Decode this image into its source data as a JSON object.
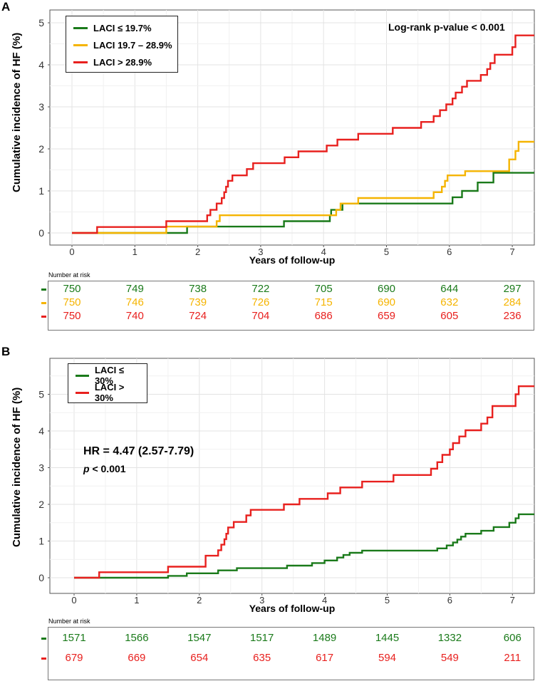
{
  "chart_data": [
    {
      "type": "line",
      "step": true,
      "panel": "A",
      "title": "",
      "xlabel": "Years of follow-up",
      "ylabel": "Cumulative incidence of HF (%)",
      "xlim": [
        -0.35,
        7.35
      ],
      "ylim": [
        -0.2,
        5.2
      ],
      "xticks": [
        0,
        1,
        2,
        3,
        4,
        5,
        6,
        7
      ],
      "yticks": [
        0,
        1,
        2,
        3,
        4,
        5
      ],
      "grid": true,
      "legend_position": "top-left",
      "annotation": "Log-rank p-value < 0.001",
      "series": [
        {
          "name": "LACI ≤ 19.7%",
          "color": "#1a7a1a",
          "points": [
            [
              0,
              0
            ],
            [
              1.83,
              0
            ],
            [
              1.83,
              0.15
            ],
            [
              3.37,
              0.15
            ],
            [
              3.37,
              0.28
            ],
            [
              4.1,
              0.28
            ],
            [
              4.1,
              0.42
            ],
            [
              4.12,
              0.42
            ],
            [
              4.12,
              0.55
            ],
            [
              4.3,
              0.55
            ],
            [
              4.3,
              0.7
            ],
            [
              6.05,
              0.7
            ],
            [
              6.05,
              0.85
            ],
            [
              6.2,
              0.85
            ],
            [
              6.2,
              1.0
            ],
            [
              6.45,
              1.0
            ],
            [
              6.45,
              1.2
            ],
            [
              6.7,
              1.2
            ],
            [
              6.7,
              1.43
            ],
            [
              7.35,
              1.43
            ]
          ]
        },
        {
          "name": "LACI 19.7 – 28.9%",
          "color": "#f5b400",
          "points": [
            [
              0,
              0
            ],
            [
              1.5,
              0
            ],
            [
              1.5,
              0.15
            ],
            [
              2.3,
              0.15
            ],
            [
              2.3,
              0.28
            ],
            [
              2.35,
              0.28
            ],
            [
              2.35,
              0.42
            ],
            [
              4.2,
              0.42
            ],
            [
              4.2,
              0.55
            ],
            [
              4.27,
              0.55
            ],
            [
              4.27,
              0.7
            ],
            [
              4.55,
              0.7
            ],
            [
              4.55,
              0.83
            ],
            [
              5.75,
              0.83
            ],
            [
              5.75,
              0.97
            ],
            [
              5.88,
              0.97
            ],
            [
              5.88,
              1.1
            ],
            [
              5.93,
              1.1
            ],
            [
              5.93,
              1.24
            ],
            [
              5.97,
              1.24
            ],
            [
              5.97,
              1.37
            ],
            [
              6.25,
              1.37
            ],
            [
              6.25,
              1.47
            ],
            [
              6.95,
              1.47
            ],
            [
              6.95,
              1.75
            ],
            [
              7.05,
              1.75
            ],
            [
              7.05,
              1.95
            ],
            [
              7.1,
              1.95
            ],
            [
              7.1,
              2.17
            ],
            [
              7.35,
              2.17
            ]
          ]
        },
        {
          "name": "LACI > 28.9%",
          "color": "#e8201e",
          "points": [
            [
              0,
              0
            ],
            [
              0.4,
              0
            ],
            [
              0.4,
              0.14
            ],
            [
              1.5,
              0.14
            ],
            [
              1.5,
              0.28
            ],
            [
              2.15,
              0.28
            ],
            [
              2.15,
              0.42
            ],
            [
              2.2,
              0.42
            ],
            [
              2.2,
              0.55
            ],
            [
              2.3,
              0.55
            ],
            [
              2.3,
              0.7
            ],
            [
              2.38,
              0.7
            ],
            [
              2.38,
              0.83
            ],
            [
              2.42,
              0.83
            ],
            [
              2.42,
              0.97
            ],
            [
              2.45,
              0.97
            ],
            [
              2.45,
              1.1
            ],
            [
              2.48,
              1.1
            ],
            [
              2.48,
              1.24
            ],
            [
              2.55,
              1.24
            ],
            [
              2.55,
              1.37
            ],
            [
              2.78,
              1.37
            ],
            [
              2.78,
              1.52
            ],
            [
              2.88,
              1.52
            ],
            [
              2.88,
              1.66
            ],
            [
              3.38,
              1.66
            ],
            [
              3.38,
              1.8
            ],
            [
              3.6,
              1.8
            ],
            [
              3.6,
              1.94
            ],
            [
              4.05,
              1.94
            ],
            [
              4.05,
              2.08
            ],
            [
              4.22,
              2.08
            ],
            [
              4.22,
              2.22
            ],
            [
              4.55,
              2.22
            ],
            [
              4.55,
              2.36
            ],
            [
              5.1,
              2.36
            ],
            [
              5.1,
              2.5
            ],
            [
              5.55,
              2.5
            ],
            [
              5.55,
              2.64
            ],
            [
              5.75,
              2.64
            ],
            [
              5.75,
              2.78
            ],
            [
              5.85,
              2.78
            ],
            [
              5.85,
              2.92
            ],
            [
              5.95,
              2.92
            ],
            [
              5.95,
              3.06
            ],
            [
              6.05,
              3.06
            ],
            [
              6.05,
              3.2
            ],
            [
              6.1,
              3.2
            ],
            [
              6.1,
              3.34
            ],
            [
              6.2,
              3.34
            ],
            [
              6.2,
              3.48
            ],
            [
              6.28,
              3.48
            ],
            [
              6.28,
              3.62
            ],
            [
              6.5,
              3.62
            ],
            [
              6.5,
              3.76
            ],
            [
              6.6,
              3.76
            ],
            [
              6.6,
              3.9
            ],
            [
              6.65,
              3.9
            ],
            [
              6.65,
              4.04
            ],
            [
              6.72,
              4.04
            ],
            [
              6.72,
              4.24
            ],
            [
              7.0,
              4.24
            ],
            [
              7.0,
              4.42
            ],
            [
              7.05,
              4.42
            ],
            [
              7.05,
              4.7
            ],
            [
              7.35,
              4.7
            ]
          ]
        }
      ],
      "risk_table": {
        "title": "Number at risk",
        "rows": [
          {
            "color": "#1a7a1a",
            "values": [
              "750",
              "749",
              "738",
              "722",
              "705",
              "690",
              "644",
              "297"
            ]
          },
          {
            "color": "#f5b400",
            "values": [
              "750",
              "746",
              "739",
              "726",
              "715",
              "690",
              "632",
              "284"
            ]
          },
          {
            "color": "#e8201e",
            "values": [
              "750",
              "740",
              "724",
              "704",
              "686",
              "659",
              "605",
              "236"
            ]
          }
        ]
      }
    },
    {
      "type": "line",
      "step": true,
      "panel": "B",
      "title": "",
      "xlabel": "Years of follow-up",
      "ylabel": "Cumulative incidence of HF (%)",
      "xlim": [
        -0.35,
        7.35
      ],
      "ylim": [
        -0.2,
        5.7
      ],
      "xticks": [
        0,
        1,
        2,
        3,
        4,
        5,
        6,
        7
      ],
      "yticks": [
        0,
        1,
        2,
        3,
        4,
        5
      ],
      "grid": true,
      "legend_position": "top-left",
      "annotation_hr": "HR = 4.47 (2.57-7.79)",
      "annotation_p_label": "p",
      "annotation_p_value": " < 0.001",
      "series": [
        {
          "name": "LACI ≤ 30%",
          "color": "#1a7a1a",
          "points": [
            [
              0,
              0
            ],
            [
              1.5,
              0
            ],
            [
              1.5,
              0.05
            ],
            [
              1.8,
              0.05
            ],
            [
              1.8,
              0.12
            ],
            [
              2.3,
              0.12
            ],
            [
              2.3,
              0.2
            ],
            [
              2.6,
              0.2
            ],
            [
              2.6,
              0.26
            ],
            [
              3.4,
              0.26
            ],
            [
              3.4,
              0.33
            ],
            [
              3.8,
              0.33
            ],
            [
              3.8,
              0.4
            ],
            [
              4.0,
              0.4
            ],
            [
              4.0,
              0.47
            ],
            [
              4.2,
              0.47
            ],
            [
              4.2,
              0.55
            ],
            [
              4.3,
              0.55
            ],
            [
              4.3,
              0.62
            ],
            [
              4.4,
              0.62
            ],
            [
              4.4,
              0.68
            ],
            [
              4.6,
              0.68
            ],
            [
              4.6,
              0.74
            ],
            [
              5.8,
              0.74
            ],
            [
              5.8,
              0.8
            ],
            [
              5.95,
              0.8
            ],
            [
              5.95,
              0.88
            ],
            [
              6.05,
              0.88
            ],
            [
              6.05,
              0.96
            ],
            [
              6.12,
              0.96
            ],
            [
              6.12,
              1.04
            ],
            [
              6.18,
              1.04
            ],
            [
              6.18,
              1.12
            ],
            [
              6.25,
              1.12
            ],
            [
              6.25,
              1.2
            ],
            [
              6.5,
              1.2
            ],
            [
              6.5,
              1.28
            ],
            [
              6.7,
              1.28
            ],
            [
              6.7,
              1.38
            ],
            [
              6.95,
              1.38
            ],
            [
              6.95,
              1.5
            ],
            [
              7.05,
              1.5
            ],
            [
              7.05,
              1.62
            ],
            [
              7.1,
              1.62
            ],
            [
              7.1,
              1.73
            ],
            [
              7.35,
              1.73
            ]
          ]
        },
        {
          "name": "LACI > 30%",
          "color": "#e8201e",
          "points": [
            [
              0,
              0
            ],
            [
              0.4,
              0
            ],
            [
              0.4,
              0.15
            ],
            [
              1.5,
              0.15
            ],
            [
              1.5,
              0.3
            ],
            [
              2.1,
              0.3
            ],
            [
              2.1,
              0.6
            ],
            [
              2.3,
              0.6
            ],
            [
              2.3,
              0.75
            ],
            [
              2.35,
              0.75
            ],
            [
              2.35,
              0.9
            ],
            [
              2.4,
              0.9
            ],
            [
              2.4,
              1.05
            ],
            [
              2.43,
              1.05
            ],
            [
              2.43,
              1.2
            ],
            [
              2.46,
              1.2
            ],
            [
              2.46,
              1.37
            ],
            [
              2.55,
              1.37
            ],
            [
              2.55,
              1.52
            ],
            [
              2.75,
              1.52
            ],
            [
              2.75,
              1.7
            ],
            [
              2.82,
              1.7
            ],
            [
              2.82,
              1.85
            ],
            [
              3.35,
              1.85
            ],
            [
              3.35,
              2.0
            ],
            [
              3.6,
              2.0
            ],
            [
              3.6,
              2.15
            ],
            [
              4.05,
              2.15
            ],
            [
              4.05,
              2.3
            ],
            [
              4.25,
              2.3
            ],
            [
              4.25,
              2.46
            ],
            [
              4.6,
              2.46
            ],
            [
              4.6,
              2.62
            ],
            [
              5.1,
              2.62
            ],
            [
              5.1,
              2.8
            ],
            [
              5.7,
              2.8
            ],
            [
              5.7,
              2.97
            ],
            [
              5.8,
              2.97
            ],
            [
              5.8,
              3.15
            ],
            [
              5.88,
              3.15
            ],
            [
              5.88,
              3.35
            ],
            [
              6.0,
              3.35
            ],
            [
              6.0,
              3.5
            ],
            [
              6.05,
              3.5
            ],
            [
              6.05,
              3.67
            ],
            [
              6.15,
              3.67
            ],
            [
              6.15,
              3.85
            ],
            [
              6.25,
              3.85
            ],
            [
              6.25,
              4.02
            ],
            [
              6.5,
              4.02
            ],
            [
              6.5,
              4.2
            ],
            [
              6.6,
              4.2
            ],
            [
              6.6,
              4.37
            ],
            [
              6.68,
              4.37
            ],
            [
              6.68,
              4.68
            ],
            [
              7.05,
              4.68
            ],
            [
              7.05,
              5.0
            ],
            [
              7.1,
              5.0
            ],
            [
              7.1,
              5.22
            ],
            [
              7.35,
              5.22
            ]
          ]
        }
      ],
      "risk_table": {
        "title": "Number at risk",
        "rows": [
          {
            "color": "#1a7a1a",
            "values": [
              "1571",
              "1566",
              "1547",
              "1517",
              "1489",
              "1445",
              "1332",
              "606"
            ]
          },
          {
            "color": "#e8201e",
            "values": [
              "679",
              "669",
              "654",
              "635",
              "617",
              "594",
              "549",
              "211"
            ]
          }
        ]
      }
    }
  ]
}
